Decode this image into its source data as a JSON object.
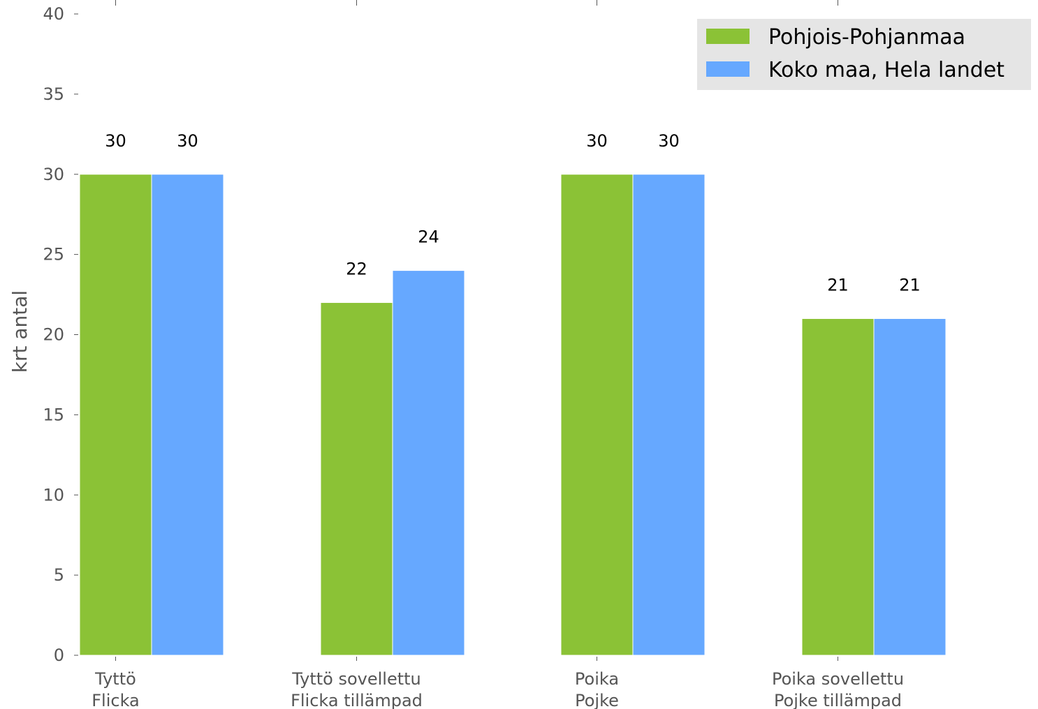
{
  "colors": {
    "series_1": "#8bc236",
    "series_2": "#66a8ff",
    "legend_bg": "#e5e5e5",
    "tick": "#555555"
  },
  "chart_data": {
    "type": "bar",
    "title": "",
    "xlabel": "",
    "ylabel": "krt antal",
    "ylim": [
      0,
      40
    ],
    "yticks": [
      0,
      5,
      10,
      15,
      20,
      25,
      30,
      35,
      40
    ],
    "categories": [
      [
        "Tyttö",
        "Flicka"
      ],
      [
        "Tyttö sovellettu",
        "Flicka tillämpad"
      ],
      [
        "Poika",
        "Pojke"
      ],
      [
        "Poika sovellettu",
        "Pojke tillämpad"
      ]
    ],
    "series": [
      {
        "name": "Pohjois-Pohjanmaa",
        "values": [
          30,
          22,
          30,
          21
        ]
      },
      {
        "name": "Koko maa, Hela landet",
        "values": [
          30,
          24,
          30,
          21
        ]
      }
    ],
    "legend_position": "top-right",
    "grid": false
  }
}
